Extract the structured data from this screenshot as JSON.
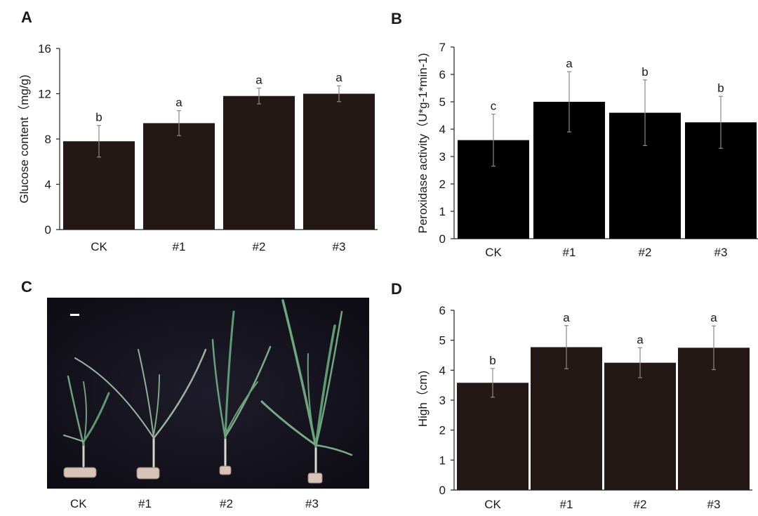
{
  "panels": {
    "a": {
      "letter": "A"
    },
    "b": {
      "letter": "B"
    },
    "c": {
      "letter": "C",
      "labels": [
        "CK",
        "#1",
        "#2",
        "#3"
      ]
    },
    "d": {
      "letter": "D"
    }
  },
  "chart_data": [
    {
      "id": "A",
      "type": "bar",
      "categories": [
        "CK",
        "#1",
        "#2",
        "#3"
      ],
      "values": [
        7.8,
        9.4,
        11.8,
        12.0
      ],
      "errors": [
        1.4,
        1.1,
        0.7,
        0.7
      ],
      "sig_letters": [
        "b",
        "a",
        "a",
        "a"
      ],
      "ylabel": "Glucose content（mg/g)",
      "ylim": [
        0,
        16
      ],
      "yticks": [
        "0",
        "4",
        "8",
        "12",
        "16"
      ],
      "ytick_values": [
        0,
        4,
        8,
        12,
        16
      ],
      "bar_color": "#231815"
    },
    {
      "id": "B",
      "type": "bar",
      "categories": [
        "CK",
        "#1",
        "#2",
        "#3"
      ],
      "values": [
        3.6,
        5.0,
        4.6,
        4.25
      ],
      "errors": [
        0.95,
        1.1,
        1.2,
        0.95
      ],
      "sig_letters": [
        "c",
        "a",
        "b",
        "b"
      ],
      "ylabel": "Peroxidase activity（U*g-1*min-1)",
      "ylim": [
        0,
        7
      ],
      "yticks": [
        "0",
        "1",
        "2",
        "3",
        "4",
        "5",
        "6",
        "7"
      ],
      "ytick_values": [
        0,
        1,
        2,
        3,
        4,
        5,
        6,
        7
      ],
      "bar_color": "#000000"
    },
    {
      "id": "D",
      "type": "bar",
      "categories": [
        "CK",
        "#1",
        "#2",
        "#3"
      ],
      "values": [
        3.58,
        4.77,
        4.25,
        4.75
      ],
      "errors": [
        0.48,
        0.72,
        0.5,
        0.73
      ],
      "sig_letters": [
        "b",
        "a",
        "a",
        "a"
      ],
      "ylabel": "High（cm)",
      "ylim": [
        0,
        6
      ],
      "yticks": [
        "0",
        "1",
        "2",
        "3",
        "4",
        "5",
        "6"
      ],
      "ytick_values": [
        0,
        1,
        2,
        3,
        4,
        5,
        6
      ],
      "bar_color": "#231815"
    }
  ]
}
